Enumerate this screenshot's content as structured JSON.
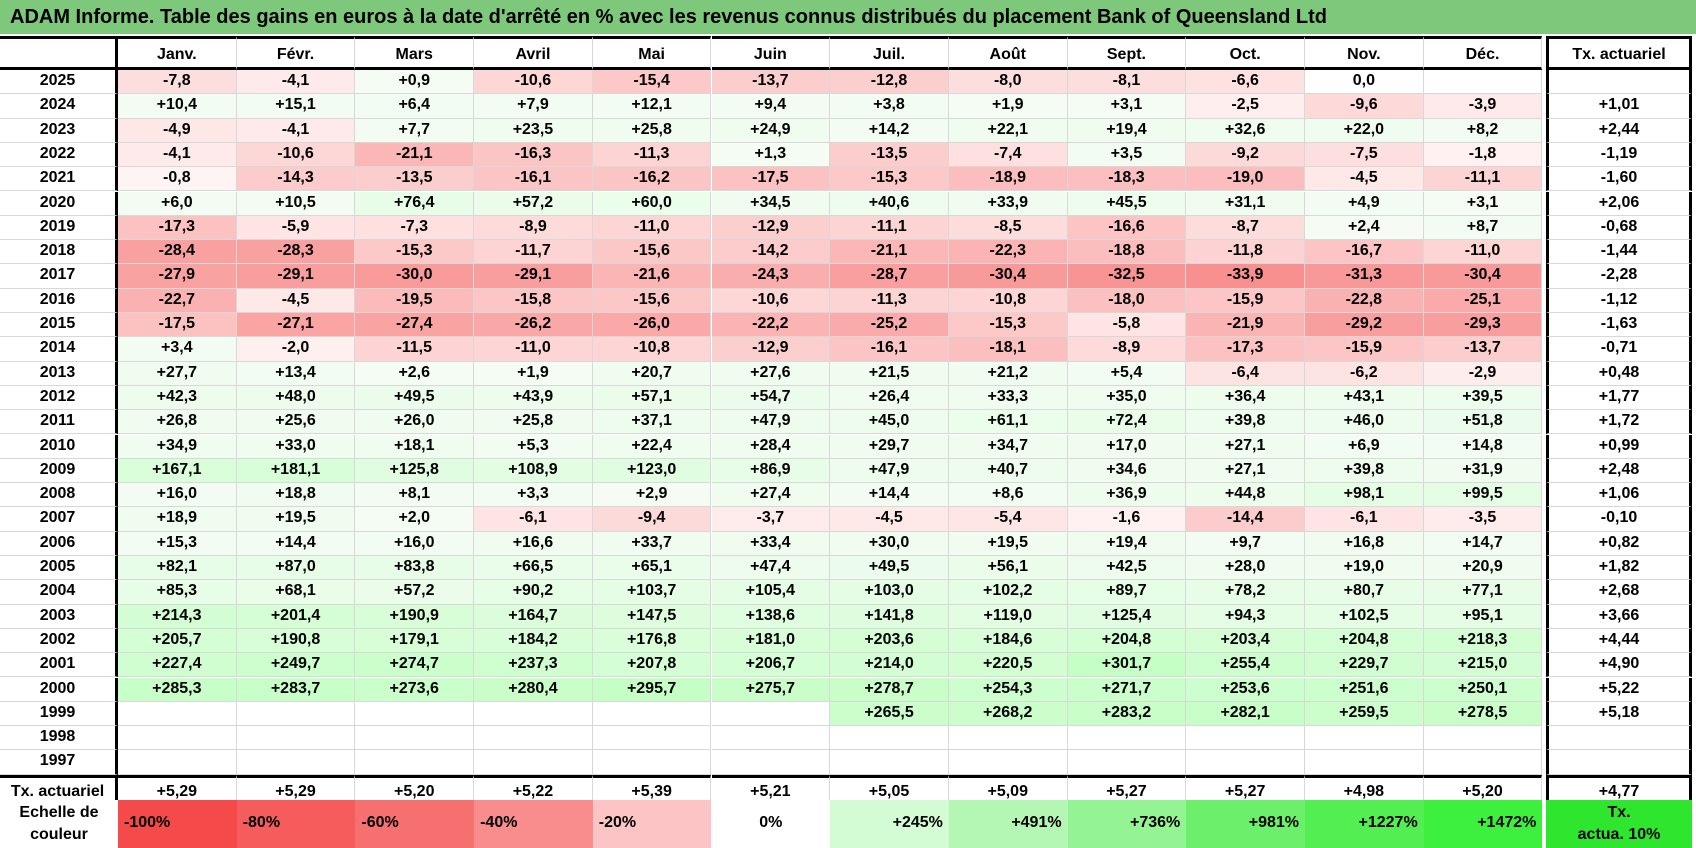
{
  "title": "ADAM Informe. Table des gains en euros à la date d'arrêté en % avec les revenus connus distribués du placement Bank of Queensland Ltd",
  "months": [
    "Janv.",
    "Févr.",
    "Mars",
    "Avril",
    "Mai",
    "Juin",
    "Juil.",
    "Août",
    "Sept.",
    "Oct.",
    "Nov.",
    "Déc."
  ],
  "tx_header": "Tx. actuariel",
  "footer_label": "Tx. actuariel",
  "footer_values": [
    "+5,29",
    "+5,29",
    "+5,20",
    "+5,22",
    "+5,39",
    "+5,21",
    "+5,05",
    "+5,09",
    "+5,27",
    "+5,27",
    "+4,98",
    "+5,20"
  ],
  "footer_total": "+4,77",
  "legend_label_1": "Echelle de",
  "legend_label_2": "couleur",
  "legend_scale": [
    "-100%",
    "-80%",
    "-60%",
    "-40%",
    "-20%",
    "0%",
    "+245%",
    "+491%",
    "+736%",
    "+981%",
    "+1227%",
    "+1472%"
  ],
  "legend_end_1": "Tx.",
  "legend_end_2": "actua. 10%",
  "colors": {
    "title_bg": "#7dc87a",
    "neg_max": "#f44a4a",
    "pos_max": "#3ef03e",
    "legend_end": "#2fe62f"
  },
  "chart_data": {
    "type": "table",
    "rows": [
      {
        "year": "2025",
        "values": [
          "-7,8",
          "-4,1",
          "+0,9",
          "-10,6",
          "-15,4",
          "-13,7",
          "-12,8",
          "-8,0",
          "-8,1",
          "-6,6",
          "0,0",
          ""
        ],
        "tx": ""
      },
      {
        "year": "2024",
        "values": [
          "+10,4",
          "+15,1",
          "+6,4",
          "+7,9",
          "+12,1",
          "+9,4",
          "+3,8",
          "+1,9",
          "+3,1",
          "-2,5",
          "-9,6",
          "-3,9"
        ],
        "tx": "+1,01"
      },
      {
        "year": "2023",
        "values": [
          "-4,9",
          "-4,1",
          "+7,7",
          "+23,5",
          "+25,8",
          "+24,9",
          "+14,2",
          "+22,1",
          "+19,4",
          "+32,6",
          "+22,0",
          "+8,2"
        ],
        "tx": "+2,44"
      },
      {
        "year": "2022",
        "values": [
          "-4,1",
          "-10,6",
          "-21,1",
          "-16,3",
          "-11,3",
          "+1,3",
          "-13,5",
          "-7,4",
          "+3,5",
          "-9,2",
          "-7,5",
          "-1,8"
        ],
        "tx": "-1,19"
      },
      {
        "year": "2021",
        "values": [
          "-0,8",
          "-14,3",
          "-13,5",
          "-16,1",
          "-16,2",
          "-17,5",
          "-15,3",
          "-18,9",
          "-18,3",
          "-19,0",
          "-4,5",
          "-11,1"
        ],
        "tx": "-1,60"
      },
      {
        "year": "2020",
        "values": [
          "+6,0",
          "+10,5",
          "+76,4",
          "+57,2",
          "+60,0",
          "+34,5",
          "+40,6",
          "+33,9",
          "+45,5",
          "+31,1",
          "+4,9",
          "+3,1"
        ],
        "tx": "+2,06"
      },
      {
        "year": "2019",
        "values": [
          "-17,3",
          "-5,9",
          "-7,3",
          "-8,9",
          "-11,0",
          "-12,9",
          "-11,1",
          "-8,5",
          "-16,6",
          "-8,7",
          "+2,4",
          "+8,7"
        ],
        "tx": "-0,68"
      },
      {
        "year": "2018",
        "values": [
          "-28,4",
          "-28,3",
          "-15,3",
          "-11,7",
          "-15,6",
          "-14,2",
          "-21,1",
          "-22,3",
          "-18,8",
          "-11,8",
          "-16,7",
          "-11,0"
        ],
        "tx": "-1,44"
      },
      {
        "year": "2017",
        "values": [
          "-27,9",
          "-29,1",
          "-30,0",
          "-29,1",
          "-21,6",
          "-24,3",
          "-28,7",
          "-30,4",
          "-32,5",
          "-33,9",
          "-31,3",
          "-30,4"
        ],
        "tx": "-2,28"
      },
      {
        "year": "2016",
        "values": [
          "-22,7",
          "-4,5",
          "-19,5",
          "-15,8",
          "-15,6",
          "-10,6",
          "-11,3",
          "-10,8",
          "-18,0",
          "-15,9",
          "-22,8",
          "-25,1"
        ],
        "tx": "-1,12"
      },
      {
        "year": "2015",
        "values": [
          "-17,5",
          "-27,1",
          "-27,4",
          "-26,2",
          "-26,0",
          "-22,2",
          "-25,2",
          "-15,3",
          "-5,8",
          "-21,9",
          "-29,2",
          "-29,3"
        ],
        "tx": "-1,63"
      },
      {
        "year": "2014",
        "values": [
          "+3,4",
          "-2,0",
          "-11,5",
          "-11,0",
          "-10,8",
          "-12,9",
          "-16,1",
          "-18,1",
          "-8,9",
          "-17,3",
          "-15,9",
          "-13,7"
        ],
        "tx": "-0,71"
      },
      {
        "year": "2013",
        "values": [
          "+27,7",
          "+13,4",
          "+2,6",
          "+1,9",
          "+20,7",
          "+27,6",
          "+21,5",
          "+21,2",
          "+5,4",
          "-6,4",
          "-6,2",
          "-2,9"
        ],
        "tx": "+0,48"
      },
      {
        "year": "2012",
        "values": [
          "+42,3",
          "+48,0",
          "+49,5",
          "+43,9",
          "+57,1",
          "+54,7",
          "+26,4",
          "+33,3",
          "+35,0",
          "+36,4",
          "+43,1",
          "+39,5"
        ],
        "tx": "+1,77"
      },
      {
        "year": "2011",
        "values": [
          "+26,8",
          "+25,6",
          "+26,0",
          "+25,8",
          "+37,1",
          "+47,9",
          "+45,0",
          "+61,1",
          "+72,4",
          "+39,8",
          "+46,0",
          "+51,8"
        ],
        "tx": "+1,72"
      },
      {
        "year": "2010",
        "values": [
          "+34,9",
          "+33,0",
          "+18,1",
          "+5,3",
          "+22,4",
          "+28,4",
          "+29,7",
          "+34,7",
          "+17,0",
          "+27,1",
          "+6,9",
          "+14,8"
        ],
        "tx": "+0,99"
      },
      {
        "year": "2009",
        "values": [
          "+167,1",
          "+181,1",
          "+125,8",
          "+108,9",
          "+123,0",
          "+86,9",
          "+47,9",
          "+40,7",
          "+34,6",
          "+27,1",
          "+39,8",
          "+31,9"
        ],
        "tx": "+2,48"
      },
      {
        "year": "2008",
        "values": [
          "+16,0",
          "+18,8",
          "+8,1",
          "+3,3",
          "+2,9",
          "+27,4",
          "+14,4",
          "+8,6",
          "+36,9",
          "+44,8",
          "+98,1",
          "+99,5"
        ],
        "tx": "+1,06"
      },
      {
        "year": "2007",
        "values": [
          "+18,9",
          "+19,5",
          "+2,0",
          "-6,1",
          "-9,4",
          "-3,7",
          "-4,5",
          "-5,4",
          "-1,6",
          "-14,4",
          "-6,1",
          "-3,5"
        ],
        "tx": "-0,10"
      },
      {
        "year": "2006",
        "values": [
          "+15,3",
          "+14,4",
          "+16,0",
          "+16,6",
          "+33,7",
          "+33,4",
          "+30,0",
          "+19,5",
          "+19,4",
          "+9,7",
          "+16,8",
          "+14,7"
        ],
        "tx": "+0,82"
      },
      {
        "year": "2005",
        "values": [
          "+82,1",
          "+87,0",
          "+83,8",
          "+66,5",
          "+65,1",
          "+47,4",
          "+49,5",
          "+56,1",
          "+42,5",
          "+28,0",
          "+19,0",
          "+20,9"
        ],
        "tx": "+1,82"
      },
      {
        "year": "2004",
        "values": [
          "+85,3",
          "+68,1",
          "+57,2",
          "+90,2",
          "+103,7",
          "+105,4",
          "+103,0",
          "+102,2",
          "+89,7",
          "+78,2",
          "+80,7",
          "+77,1"
        ],
        "tx": "+2,68"
      },
      {
        "year": "2003",
        "values": [
          "+214,3",
          "+201,4",
          "+190,9",
          "+164,7",
          "+147,5",
          "+138,6",
          "+141,8",
          "+119,0",
          "+125,4",
          "+94,3",
          "+102,5",
          "+95,1"
        ],
        "tx": "+3,66"
      },
      {
        "year": "2002",
        "values": [
          "+205,7",
          "+190,8",
          "+179,1",
          "+184,2",
          "+176,8",
          "+181,0",
          "+203,6",
          "+184,6",
          "+204,8",
          "+203,4",
          "+204,8",
          "+218,3"
        ],
        "tx": "+4,44"
      },
      {
        "year": "2001",
        "values": [
          "+227,4",
          "+249,7",
          "+274,7",
          "+237,3",
          "+207,8",
          "+206,7",
          "+214,0",
          "+220,5",
          "+301,7",
          "+255,4",
          "+229,7",
          "+215,0"
        ],
        "tx": "+4,90"
      },
      {
        "year": "2000",
        "values": [
          "+285,3",
          "+283,7",
          "+273,6",
          "+280,4",
          "+295,7",
          "+275,7",
          "+278,7",
          "+254,3",
          "+271,7",
          "+253,6",
          "+251,6",
          "+250,1"
        ],
        "tx": "+5,22"
      },
      {
        "year": "1999",
        "values": [
          "",
          "",
          "",
          "",
          "",
          "",
          "+265,5",
          "+268,2",
          "+283,2",
          "+282,1",
          "+259,5",
          "+278,5"
        ],
        "tx": "+5,18"
      },
      {
        "year": "1998",
        "values": [
          "",
          "",
          "",
          "",
          "",
          "",
          "",
          "",
          "",
          "",
          "",
          ""
        ],
        "tx": ""
      },
      {
        "year": "1997",
        "values": [
          "",
          "",
          "",
          "",
          "",
          "",
          "",
          "",
          "",
          "",
          "",
          ""
        ],
        "tx": ""
      }
    ]
  }
}
